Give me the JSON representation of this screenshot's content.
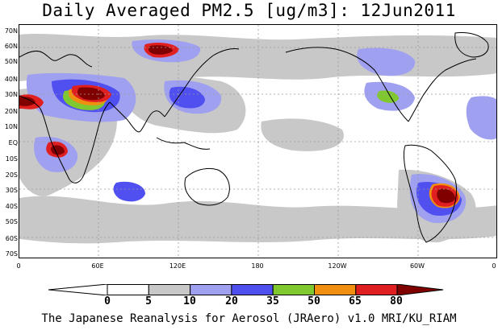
{
  "title": "Daily Averaged PM2.5 [ug/m3]: 12Jun2011",
  "credit": "The Japanese Reanalysis for Aerosol (JRAero) v1.0 MRI/KU_RIAM",
  "lat_labels": [
    "70N",
    "60N",
    "50N",
    "40N",
    "30N",
    "20N",
    "10N",
    "EQ",
    "10S",
    "20S",
    "30S",
    "40S",
    "50S",
    "60S",
    "70S"
  ],
  "lon_labels": [
    "0",
    "60E",
    "120E",
    "180",
    "120W",
    "60W",
    "0"
  ],
  "legend": {
    "levels": [
      "0",
      "5",
      "10",
      "20",
      "35",
      "50",
      "65",
      "80"
    ],
    "colors": [
      "#ffffff",
      "#c8c8c8",
      "#a0a0f0",
      "#5050f0",
      "#80c830",
      "#f09010",
      "#e02020",
      "#800000"
    ]
  },
  "colors": {
    "coastline": "#000000",
    "gridline": "#9a9a9a",
    "background": "#ffffff"
  }
}
